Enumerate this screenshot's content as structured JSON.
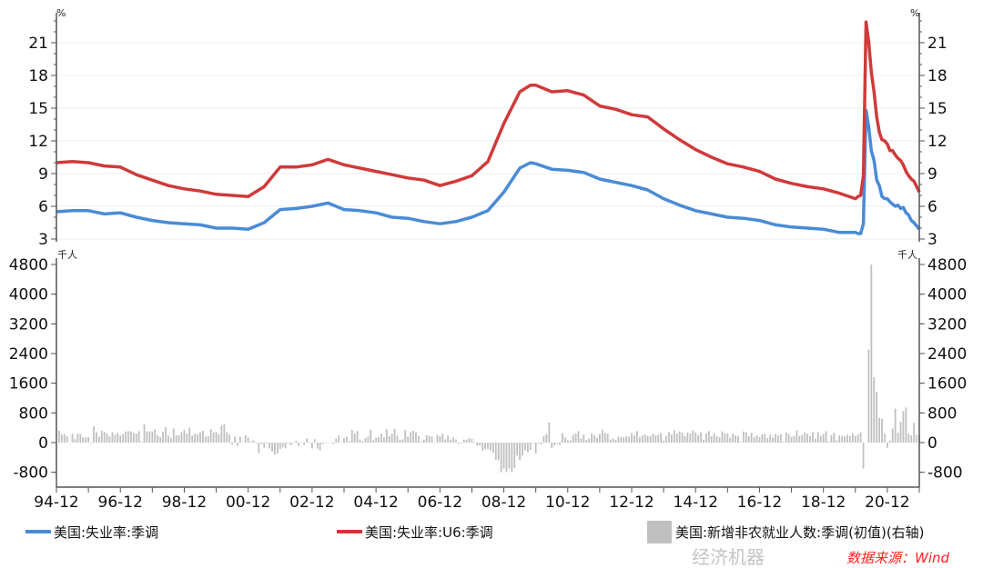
{
  "chart_data": [
    {
      "type": "line",
      "panel": "top",
      "y_unit_left": "%",
      "y_unit_right": "%",
      "ylim": [
        3,
        23.7
      ],
      "yticks": [
        3,
        6,
        9,
        12,
        15,
        18,
        21
      ],
      "grid": "horizontal",
      "series": [
        {
          "name": "美国:失业率:季调",
          "color": "#4a8bd6",
          "points": [
            [
              "1994-12",
              5.5
            ],
            [
              "1995-06",
              5.6
            ],
            [
              "1995-12",
              5.6
            ],
            [
              "1996-06",
              5.3
            ],
            [
              "1996-12",
              5.4
            ],
            [
              "1997-06",
              5.0
            ],
            [
              "1997-12",
              4.7
            ],
            [
              "1998-06",
              4.5
            ],
            [
              "1998-12",
              4.4
            ],
            [
              "1999-06",
              4.3
            ],
            [
              "1999-12",
              4.0
            ],
            [
              "2000-06",
              4.0
            ],
            [
              "2000-12",
              3.9
            ],
            [
              "2001-06",
              4.5
            ],
            [
              "2001-12",
              5.7
            ],
            [
              "2002-06",
              5.8
            ],
            [
              "2002-12",
              6.0
            ],
            [
              "2003-06",
              6.3
            ],
            [
              "2003-12",
              5.7
            ],
            [
              "2004-06",
              5.6
            ],
            [
              "2004-12",
              5.4
            ],
            [
              "2005-06",
              5.0
            ],
            [
              "2005-12",
              4.9
            ],
            [
              "2006-06",
              4.6
            ],
            [
              "2006-12",
              4.4
            ],
            [
              "2007-06",
              4.6
            ],
            [
              "2007-12",
              5.0
            ],
            [
              "2008-06",
              5.6
            ],
            [
              "2008-12",
              7.3
            ],
            [
              "2009-06",
              9.5
            ],
            [
              "2009-10",
              10.0
            ],
            [
              "2009-12",
              9.9
            ],
            [
              "2010-06",
              9.4
            ],
            [
              "2010-12",
              9.3
            ],
            [
              "2011-06",
              9.1
            ],
            [
              "2011-12",
              8.5
            ],
            [
              "2012-06",
              8.2
            ],
            [
              "2012-12",
              7.9
            ],
            [
              "2013-06",
              7.5
            ],
            [
              "2013-12",
              6.7
            ],
            [
              "2014-06",
              6.1
            ],
            [
              "2014-12",
              5.6
            ],
            [
              "2015-06",
              5.3
            ],
            [
              "2015-12",
              5.0
            ],
            [
              "2016-06",
              4.9
            ],
            [
              "2016-12",
              4.7
            ],
            [
              "2017-06",
              4.3
            ],
            [
              "2017-12",
              4.1
            ],
            [
              "2018-06",
              4.0
            ],
            [
              "2018-12",
              3.9
            ],
            [
              "2019-06",
              3.6
            ],
            [
              "2019-12",
              3.6
            ],
            [
              "2020-01",
              3.5
            ],
            [
              "2020-02",
              3.5
            ],
            [
              "2020-03",
              4.4
            ],
            [
              "2020-04",
              14.8
            ],
            [
              "2020-05",
              13.3
            ],
            [
              "2020-06",
              11.1
            ],
            [
              "2020-07",
              10.2
            ],
            [
              "2020-08",
              8.4
            ],
            [
              "2020-09",
              7.9
            ],
            [
              "2020-10",
              6.9
            ],
            [
              "2020-11",
              6.7
            ],
            [
              "2020-12",
              6.7
            ],
            [
              "2021-01",
              6.4
            ],
            [
              "2021-02",
              6.2
            ],
            [
              "2021-03",
              6.0
            ],
            [
              "2021-04",
              6.1
            ],
            [
              "2021-05",
              5.8
            ],
            [
              "2021-06",
              5.9
            ],
            [
              "2021-07",
              5.4
            ],
            [
              "2021-08",
              5.2
            ],
            [
              "2021-09",
              4.7
            ],
            [
              "2021-10",
              4.5
            ],
            [
              "2021-11",
              4.2
            ],
            [
              "2021-12",
              3.9
            ]
          ]
        },
        {
          "name": "美国:失业率:U6:季调",
          "color": "#d03a3a",
          "points": [
            [
              "1994-12",
              10.0
            ],
            [
              "1995-06",
              10.1
            ],
            [
              "1995-12",
              10.0
            ],
            [
              "1996-06",
              9.7
            ],
            [
              "1996-12",
              9.6
            ],
            [
              "1997-06",
              8.9
            ],
            [
              "1997-12",
              8.4
            ],
            [
              "1998-06",
              7.9
            ],
            [
              "1998-12",
              7.6
            ],
            [
              "1999-06",
              7.4
            ],
            [
              "1999-12",
              7.1
            ],
            [
              "2000-06",
              7.0
            ],
            [
              "2000-12",
              6.9
            ],
            [
              "2001-06",
              7.8
            ],
            [
              "2001-12",
              9.6
            ],
            [
              "2002-06",
              9.6
            ],
            [
              "2002-12",
              9.8
            ],
            [
              "2003-06",
              10.3
            ],
            [
              "2003-12",
              9.8
            ],
            [
              "2004-06",
              9.5
            ],
            [
              "2004-12",
              9.2
            ],
            [
              "2005-06",
              8.9
            ],
            [
              "2005-12",
              8.6
            ],
            [
              "2006-06",
              8.4
            ],
            [
              "2006-12",
              7.9
            ],
            [
              "2007-06",
              8.3
            ],
            [
              "2007-12",
              8.8
            ],
            [
              "2008-06",
              10.1
            ],
            [
              "2008-12",
              13.6
            ],
            [
              "2009-06",
              16.5
            ],
            [
              "2009-10",
              17.1
            ],
            [
              "2009-12",
              17.1
            ],
            [
              "2010-06",
              16.5
            ],
            [
              "2010-12",
              16.6
            ],
            [
              "2011-06",
              16.2
            ],
            [
              "2011-12",
              15.2
            ],
            [
              "2012-06",
              14.9
            ],
            [
              "2012-12",
              14.4
            ],
            [
              "2013-06",
              14.2
            ],
            [
              "2013-12",
              13.1
            ],
            [
              "2014-06",
              12.1
            ],
            [
              "2014-12",
              11.2
            ],
            [
              "2015-06",
              10.5
            ],
            [
              "2015-12",
              9.9
            ],
            [
              "2016-06",
              9.6
            ],
            [
              "2016-12",
              9.2
            ],
            [
              "2017-06",
              8.5
            ],
            [
              "2017-12",
              8.1
            ],
            [
              "2018-06",
              7.8
            ],
            [
              "2018-12",
              7.6
            ],
            [
              "2019-06",
              7.2
            ],
            [
              "2019-12",
              6.7
            ],
            [
              "2020-01",
              6.9
            ],
            [
              "2020-02",
              7.0
            ],
            [
              "2020-03",
              8.8
            ],
            [
              "2020-04",
              22.9
            ],
            [
              "2020-05",
              21.1
            ],
            [
              "2020-06",
              18.3
            ],
            [
              "2020-07",
              16.5
            ],
            [
              "2020-08",
              14.2
            ],
            [
              "2020-09",
              12.8
            ],
            [
              "2020-10",
              12.1
            ],
            [
              "2020-11",
              12.0
            ],
            [
              "2020-12",
              11.7
            ],
            [
              "2021-01",
              11.1
            ],
            [
              "2021-02",
              11.1
            ],
            [
              "2021-03",
              10.7
            ],
            [
              "2021-04",
              10.4
            ],
            [
              "2021-05",
              10.2
            ],
            [
              "2021-06",
              9.8
            ],
            [
              "2021-07",
              9.2
            ],
            [
              "2021-08",
              8.8
            ],
            [
              "2021-09",
              8.5
            ],
            [
              "2021-10",
              8.3
            ],
            [
              "2021-11",
              7.8
            ],
            [
              "2021-12",
              7.3
            ]
          ]
        }
      ]
    },
    {
      "type": "bar",
      "panel": "bottom",
      "y_unit_left": "千人",
      "y_unit_right": "千人",
      "ylim": [
        -1200,
        4900
      ],
      "yticks": [
        -800,
        0,
        800,
        1600,
        2400,
        3200,
        4000,
        4800
      ],
      "series": [
        {
          "name": "美国:新增非农就业人数:季调(初值)(右轴)",
          "color": "#c0c0c0",
          "start": "1995-01",
          "monthly_by_year": {
            "1995": [
              320,
              220,
              230,
              170,
              -10,
              240,
              90,
              240,
              230,
              140,
              140,
              150
            ],
            "1996": [
              -20,
              440,
              280,
              160,
              320,
              290,
              250,
              160,
              280,
              210,
              260,
              200
            ],
            "1997": [
              230,
              290,
              310,
              300,
              260,
              240,
              310,
              20,
              490,
              300,
              300,
              300
            ],
            "1998": [
              360,
              200,
              150,
              290,
              410,
              200,
              130,
              380,
              200,
              190,
              280,
              340
            ],
            "1999": [
              240,
              400,
              190,
              240,
              220,
              280,
              320,
              160,
              180,
              360,
              270,
              290
            ],
            "2000": [
              230,
              460,
              490,
              270,
              220,
              -50,
              160,
              -90,
              160,
              10,
              200,
              140
            ],
            "2001": [
              30,
              60,
              -20,
              -280,
              -40,
              -130,
              -20,
              -160,
              -240,
              -330,
              -290,
              -170
            ],
            "2002": [
              -130,
              -150,
              -20,
              -70,
              -10,
              50,
              -90,
              10,
              -60,
              110,
              20,
              -160
            ],
            "2003": [
              90,
              -160,
              -210,
              -40,
              -10,
              -10,
              10,
              -40,
              110,
              190,
              10,
              120
            ],
            "2004": [
              150,
              40,
              340,
              250,
              310,
              80,
              40,
              120,
              160,
              340,
              60,
              130
            ],
            "2005": [
              140,
              240,
              140,
              360,
              170,
              250,
              370,
              190,
              70,
              90,
              340,
              160
            ],
            "2006": [
              280,
              320,
              280,
              180,
              20,
              80,
              200,
              180,
              160,
              0,
              210,
              170
            ],
            "2007": [
              240,
              90,
              190,
              80,
              140,
              80,
              -30,
              -20,
              80,
              80,
              120,
              100
            ],
            "2008": [
              20,
              -80,
              -80,
              -220,
              -180,
              -170,
              -210,
              -270,
              -460,
              -480,
              -800,
              -700
            ],
            "2009": [
              -790,
              -700,
              -800,
              -690,
              -350,
              -470,
              -350,
              -210,
              -260,
              -200,
              0,
              -290
            ],
            "2010": [
              -20,
              -50,
              180,
              230,
              540,
              -150,
              -80,
              -30,
              -60,
              260,
              140,
              60
            ],
            "2011": [
              60,
              210,
              240,
              310,
              110,
              220,
              70,
              110,
              240,
              200,
              130,
              230
            ],
            "2012": [
              350,
              260,
              240,
              80,
              110,
              70,
              160,
              150,
              140,
              170,
              160,
              260
            ],
            "2013": [
              190,
              310,
              140,
              190,
              220,
              180,
              170,
              240,
              190,
              210,
              250,
              50
            ],
            "2014": [
              180,
              280,
              220,
              330,
              240,
              300,
              260,
              170,
              270,
              240,
              330,
              270
            ],
            "2015": [
              200,
              270,
              80,
              250,
              310,
              170,
              250,
              170,
              150,
              300,
              250,
              240
            ],
            "2016": [
              130,
              240,
              190,
              170,
              20,
              300,
              280,
              180,
              260,
              150,
              190,
              150
            ],
            "2017": [
              220,
              230,
              120,
              210,
              140,
              230,
              190,
              220,
              20,
              270,
              230,
              150
            ],
            "2018": [
              180,
              330,
              180,
              200,
              270,
              240,
              170,
              280,
              110,
              280,
              180,
              230
            ],
            "2019": [
              310,
              20,
              200,
              260,
              60,
              190,
              180,
              170,
              210,
              180,
              250,
              180
            ],
            "2020": [
              225,
              273,
              -701,
              null,
              2509,
              4800,
              1763,
              1371,
              661,
              638,
              245,
              -140
            ],
            "2021": [
              49,
              379,
              916,
              266,
              559,
              850,
              943,
              235,
              194,
              531,
              210,
              199
            ]
          }
        }
      ]
    }
  ],
  "x_axis": {
    "range": [
      "1994-12",
      "2021-12"
    ],
    "tick_labels": [
      "94-12",
      "96-12",
      "98-12",
      "00-12",
      "02-12",
      "04-12",
      "06-12",
      "08-12",
      "10-12",
      "12-12",
      "14-12",
      "16-12",
      "18-12",
      "20-12"
    ]
  },
  "legend": {
    "placement": "bottom",
    "items": [
      {
        "label": "美国:失业率:季调",
        "color": "#4a8bd6",
        "kind": "line"
      },
      {
        "label": "美国:失业率:U6:季调",
        "color": "#d03a3a",
        "kind": "line"
      },
      {
        "label": "美国:新增非农就业人数:季调(初值)(右轴)",
        "color": "#c0c0c0",
        "kind": "box"
      }
    ]
  },
  "source": "数据来源：Wind",
  "watermark": "经济机器"
}
